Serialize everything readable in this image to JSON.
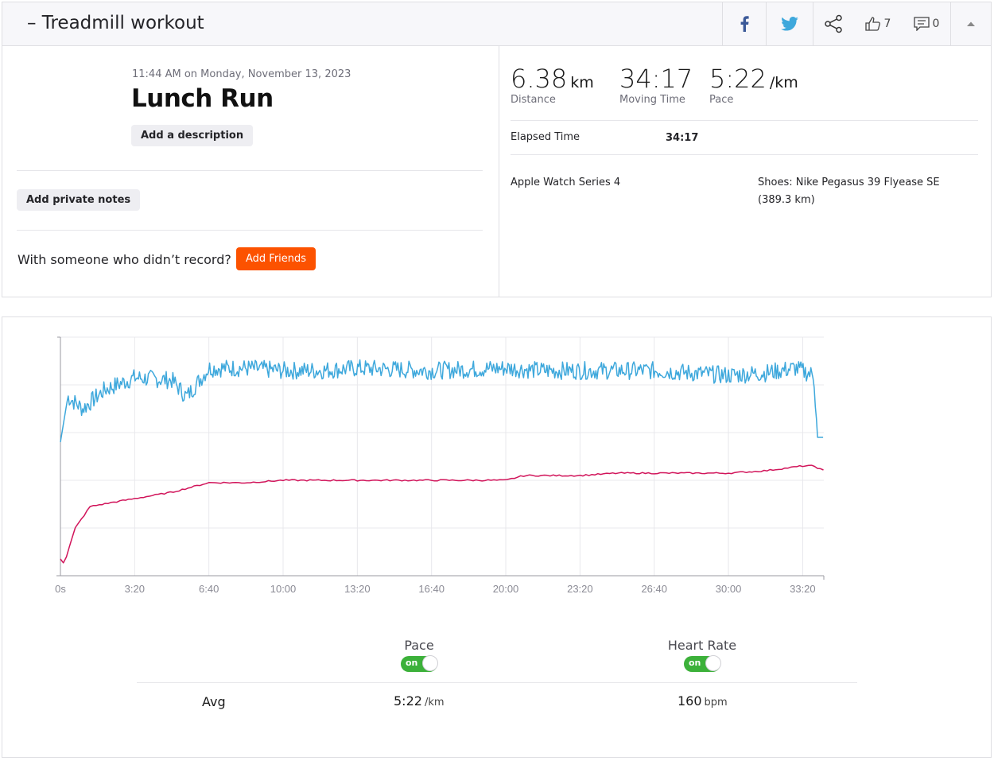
{
  "header": {
    "title": "– Treadmill workout",
    "actions": [
      {
        "name": "facebook-share",
        "icon": "facebook-icon"
      },
      {
        "name": "twitter-share",
        "icon": "twitter-icon"
      },
      {
        "name": "share",
        "icon": "share-icon"
      },
      {
        "name": "kudos",
        "icon": "thumbs-up-icon",
        "count": "7"
      },
      {
        "name": "comments",
        "icon": "comment-icon",
        "count": "0"
      },
      {
        "name": "collapse",
        "icon": "caret-up-icon"
      }
    ]
  },
  "activity": {
    "datetime": "11:44 AM on Monday, November 13, 2023",
    "name": "Lunch Run",
    "add_description_label": "Add a description",
    "add_notes_label": "Add private notes",
    "with_someone_text": "With someone who didn’t record?",
    "add_friends_label": "Add Friends"
  },
  "stats": {
    "distance": {
      "value": "6.38",
      "unit": "km",
      "label": "Distance"
    },
    "moving_time": {
      "value": "34:17",
      "label": "Moving Time"
    },
    "pace": {
      "value": "5:22",
      "unit": "/km",
      "label": "Pace"
    },
    "elapsed_label": "Elapsed Time",
    "elapsed_value": "34:17",
    "device": "Apple Watch Series 4",
    "shoes_line1": "Shoes: Nike Pegasus 39 Flyease SE",
    "shoes_line2": "(389.3 km)"
  },
  "colors": {
    "pace_line": "#3ea8dc",
    "heart_rate_line": "#d1145a",
    "accent_orange": "#fc5200",
    "toggle_on": "#3cb13a"
  },
  "chart_data": {
    "type": "line",
    "x_ticks": [
      "0s",
      "3:20",
      "6:40",
      "10:00",
      "13:20",
      "16:40",
      "20:00",
      "23:20",
      "26:40",
      "30:00",
      "33:20"
    ],
    "x_range": [
      0,
      2057
    ],
    "grid": true,
    "series": [
      {
        "name": "Pace",
        "color": "#3ea8dc",
        "level": [
          [
            0,
            0.56
          ],
          [
            20,
            0.75
          ],
          [
            60,
            0.7
          ],
          [
            120,
            0.78
          ],
          [
            200,
            0.83
          ],
          [
            300,
            0.82
          ],
          [
            340,
            0.75
          ],
          [
            400,
            0.87
          ],
          [
            500,
            0.87
          ],
          [
            600,
            0.86
          ],
          [
            700,
            0.86
          ],
          [
            800,
            0.87
          ],
          [
            1000,
            0.86
          ],
          [
            1200,
            0.87
          ],
          [
            1300,
            0.86
          ],
          [
            1600,
            0.86
          ],
          [
            1800,
            0.84
          ],
          [
            1900,
            0.85
          ],
          [
            1980,
            0.87
          ],
          [
            2030,
            0.84
          ],
          [
            2040,
            0.58
          ],
          [
            2057,
            0.58
          ]
        ]
      },
      {
        "name": "Heart Rate",
        "color": "#d1145a",
        "level": [
          [
            0,
            0.07
          ],
          [
            10,
            0.05
          ],
          [
            40,
            0.2
          ],
          [
            80,
            0.29
          ],
          [
            150,
            0.31
          ],
          [
            300,
            0.35
          ],
          [
            400,
            0.39
          ],
          [
            500,
            0.39
          ],
          [
            600,
            0.4
          ],
          [
            700,
            0.4
          ],
          [
            800,
            0.4
          ],
          [
            1000,
            0.4
          ],
          [
            1200,
            0.4
          ],
          [
            1250,
            0.42
          ],
          [
            1400,
            0.42
          ],
          [
            1500,
            0.43
          ],
          [
            1600,
            0.43
          ],
          [
            1800,
            0.43
          ],
          [
            1900,
            0.44
          ],
          [
            1950,
            0.45
          ],
          [
            2000,
            0.46
          ],
          [
            2030,
            0.46
          ],
          [
            2057,
            0.44
          ]
        ]
      }
    ]
  },
  "legend": {
    "pace_label": "Pace",
    "heart_rate_label": "Heart Rate",
    "toggle_on_text": "on"
  },
  "averages": {
    "label": "Avg",
    "pace_value": "5:22",
    "pace_unit": "/km",
    "hr_value": "160",
    "hr_unit": "bpm"
  }
}
